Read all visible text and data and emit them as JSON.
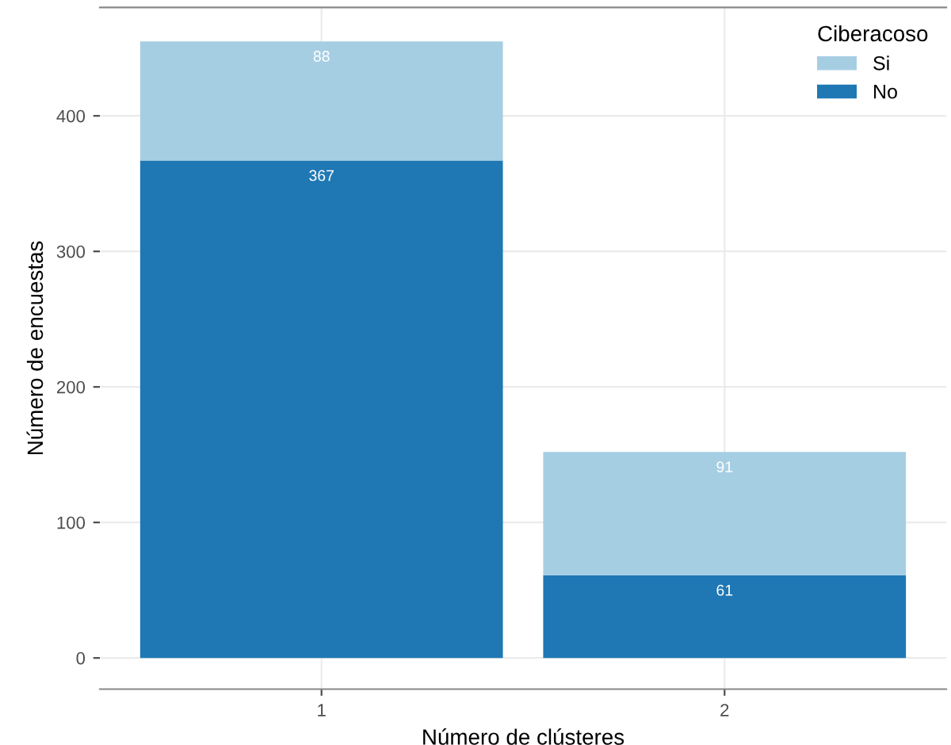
{
  "chart_data": {
    "type": "bar",
    "stacked": true,
    "xlabel": "Número de clústeres",
    "ylabel": "Número de encuestas",
    "legend_title": "Ciberacoso",
    "categories": [
      "1",
      "2"
    ],
    "series": [
      {
        "name": "No",
        "color": "#1f78b4",
        "values": [
          367,
          61
        ]
      },
      {
        "name": "Si",
        "color": "#a6cee3",
        "values": [
          88,
          91
        ]
      }
    ],
    "ylim": [
      -23,
      480
    ],
    "yticks": [
      0,
      100,
      200,
      300,
      400
    ],
    "grid": true,
    "legend": "top right",
    "data_labels": true
  }
}
